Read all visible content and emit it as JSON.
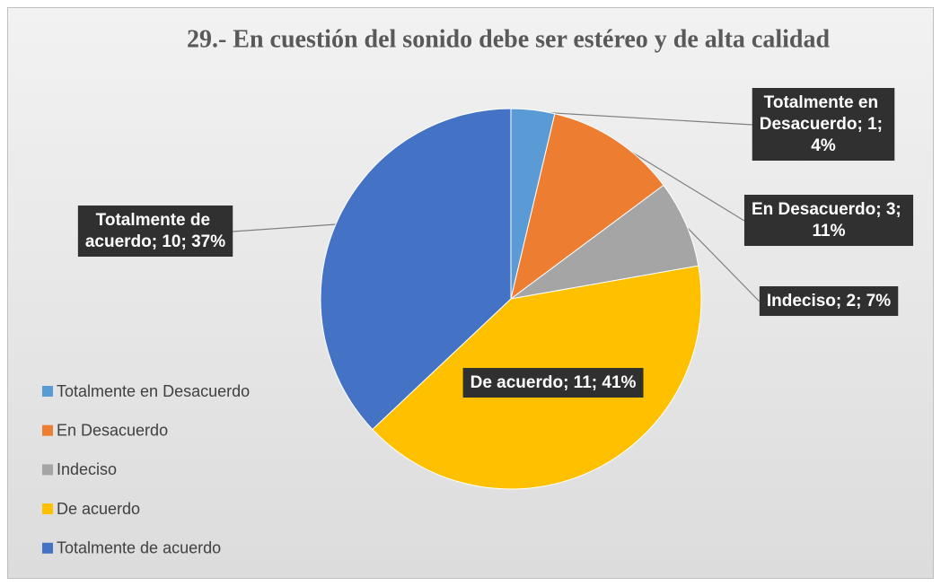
{
  "chart_data": {
    "type": "pie",
    "title": "29.- En cuestión del sonido debe ser estéreo y de alta calidad",
    "categories": [
      "Totalmente en Desacuerdo",
      "En Desacuerdo",
      "Indeciso",
      "De acuerdo",
      "Totalmente de acuerdo"
    ],
    "values": [
      1,
      3,
      2,
      11,
      10
    ],
    "value_labels": [
      "Totalmente en Desacuerdo; 1; 4%",
      "En Desacuerdo; 3; 11%",
      "Indeciso; 2; 7%",
      "De acuerdo; 11; 41%",
      "Totalmente de acuerdo; 10; 37%"
    ],
    "colors": [
      "#5b9bd5",
      "#ed7d31",
      "#a5a5a5",
      "#ffc000",
      "#4472c4"
    ],
    "legend": "left"
  }
}
